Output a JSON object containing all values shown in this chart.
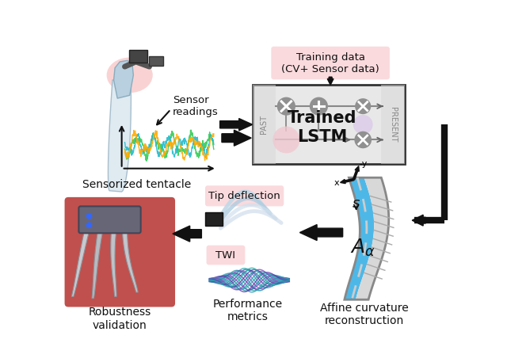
{
  "background_color": "#ffffff",
  "training_data_box_color": "#fadadd",
  "training_data_text": "Training data\n(CV+ Sensor data)",
  "lstm_box_color": "#e8e8e8",
  "lstm_text": "Trained\nLSTM",
  "past_text": "PAST",
  "present_text": "PRESENT",
  "tip_deflection_box_color": "#fadadd",
  "tip_deflection_text": "Tip deflection",
  "twi_box_color": "#fadadd",
  "twi_text": "TWI",
  "sensor_readings_text": "Sensor\nreadings",
  "sensorized_tentacle_text": "Sensorized tentacle",
  "robustness_validation_text": "Robustness\nvalidation",
  "performance_metrics_text": "Performance\nmetrics",
  "affine_curvature_text": "Affine curvature\nreconstruction",
  "robustness_box_color": "#c0504d",
  "arrow_color": "#1a1a1a",
  "node_gray": "#909090",
  "node_pink": "#f0c8d0",
  "node_lavender": "#ddd0e8",
  "tentacle_blue": "#4db8e8",
  "tentacle_gray": "#c0c0c8"
}
